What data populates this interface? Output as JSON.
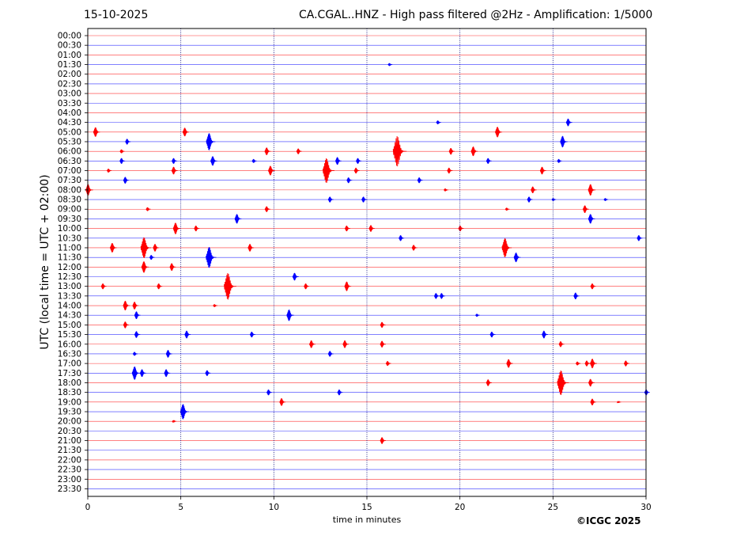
{
  "header": {
    "date": "15-10-2025",
    "title": "CA.CGAL..HNZ - High pass filtered @2Hz - Amplification: 1/5000"
  },
  "footer": {
    "copyright": "©ICGC 2025"
  },
  "colors": {
    "trace_a": "#ff0000",
    "trace_b": "#0000ff",
    "grid": "#00007a"
  },
  "chart_data": {
    "type": "line",
    "xlabel": "time in minutes",
    "ylabel": "UTC (local time = UTC + 02:00)",
    "xlim": [
      0,
      30
    ],
    "xticks": [
      0,
      5,
      10,
      15,
      20,
      25,
      30
    ],
    "vertical_grid_at": [
      5,
      10,
      15,
      20,
      25
    ],
    "row_labels": [
      "00:00",
      "00:30",
      "01:00",
      "01:30",
      "02:00",
      "02:30",
      "03:00",
      "03:30",
      "04:00",
      "04:30",
      "05:00",
      "05:30",
      "06:00",
      "06:30",
      "07:00",
      "07:30",
      "08:00",
      "08:30",
      "09:00",
      "09:30",
      "10:00",
      "10:30",
      "11:00",
      "11:30",
      "12:00",
      "12:30",
      "13:00",
      "13:30",
      "14:00",
      "14:30",
      "15:00",
      "15:30",
      "16:00",
      "16:30",
      "17:00",
      "17:30",
      "18:00",
      "18:30",
      "19:00",
      "19:30",
      "20:00",
      "20:30",
      "21:00",
      "21:30",
      "22:00",
      "22:30",
      "23:00",
      "23:30"
    ],
    "row_colors": [
      "trace_a",
      "trace_b"
    ],
    "events": [
      {
        "row": 3,
        "t": 16.2,
        "amp": 0.15
      },
      {
        "row": 9,
        "t": 18.8,
        "amp": 0.2
      },
      {
        "row": 9,
        "t": 25.8,
        "amp": 0.4
      },
      {
        "row": 10,
        "t": 0.4,
        "amp": 0.5
      },
      {
        "row": 10,
        "t": 5.2,
        "amp": 0.45
      },
      {
        "row": 10,
        "t": 22.0,
        "amp": 0.55
      },
      {
        "row": 11,
        "t": 2.1,
        "amp": 0.3
      },
      {
        "row": 11,
        "t": 6.5,
        "amp": 0.9
      },
      {
        "row": 11,
        "t": 25.5,
        "amp": 0.6
      },
      {
        "row": 12,
        "t": 1.8,
        "amp": 0.2
      },
      {
        "row": 12,
        "t": 9.6,
        "amp": 0.4
      },
      {
        "row": 12,
        "t": 11.3,
        "amp": 0.3
      },
      {
        "row": 12,
        "t": 16.6,
        "amp": 1.6
      },
      {
        "row": 12,
        "t": 19.5,
        "amp": 0.35
      },
      {
        "row": 12,
        "t": 20.7,
        "amp": 0.5
      },
      {
        "row": 13,
        "t": 1.8,
        "amp": 0.3
      },
      {
        "row": 13,
        "t": 4.6,
        "amp": 0.3
      },
      {
        "row": 13,
        "t": 6.7,
        "amp": 0.5
      },
      {
        "row": 13,
        "t": 8.9,
        "amp": 0.2
      },
      {
        "row": 13,
        "t": 13.4,
        "amp": 0.4
      },
      {
        "row": 13,
        "t": 14.5,
        "amp": 0.3
      },
      {
        "row": 13,
        "t": 21.5,
        "amp": 0.3
      },
      {
        "row": 13,
        "t": 25.3,
        "amp": 0.2
      },
      {
        "row": 14,
        "t": 1.1,
        "amp": 0.2
      },
      {
        "row": 14,
        "t": 4.6,
        "amp": 0.4
      },
      {
        "row": 14,
        "t": 9.8,
        "amp": 0.5
      },
      {
        "row": 14,
        "t": 12.8,
        "amp": 1.3
      },
      {
        "row": 14,
        "t": 14.4,
        "amp": 0.3
      },
      {
        "row": 14,
        "t": 19.4,
        "amp": 0.3
      },
      {
        "row": 14,
        "t": 24.4,
        "amp": 0.4
      },
      {
        "row": 15,
        "t": 2.0,
        "amp": 0.35
      },
      {
        "row": 15,
        "t": 14.0,
        "amp": 0.3
      },
      {
        "row": 15,
        "t": 17.8,
        "amp": 0.3
      },
      {
        "row": 16,
        "t": 0.0,
        "amp": 0.6
      },
      {
        "row": 16,
        "t": 19.2,
        "amp": 0.15
      },
      {
        "row": 16,
        "t": 23.9,
        "amp": 0.35
      },
      {
        "row": 16,
        "t": 27.0,
        "amp": 0.6
      },
      {
        "row": 17,
        "t": 13.0,
        "amp": 0.3
      },
      {
        "row": 17,
        "t": 14.8,
        "amp": 0.3
      },
      {
        "row": 17,
        "t": 23.7,
        "amp": 0.3
      },
      {
        "row": 17,
        "t": 25.0,
        "amp": 0.15
      },
      {
        "row": 17,
        "t": 27.8,
        "amp": 0.15
      },
      {
        "row": 18,
        "t": 3.2,
        "amp": 0.2
      },
      {
        "row": 18,
        "t": 9.6,
        "amp": 0.3
      },
      {
        "row": 18,
        "t": 22.5,
        "amp": 0.15
      },
      {
        "row": 18,
        "t": 26.7,
        "amp": 0.4
      },
      {
        "row": 19,
        "t": 8.0,
        "amp": 0.5
      },
      {
        "row": 19,
        "t": 27.0,
        "amp": 0.5
      },
      {
        "row": 20,
        "t": 4.7,
        "amp": 0.6
      },
      {
        "row": 20,
        "t": 5.8,
        "amp": 0.3
      },
      {
        "row": 20,
        "t": 13.9,
        "amp": 0.3
      },
      {
        "row": 20,
        "t": 15.2,
        "amp": 0.35
      },
      {
        "row": 20,
        "t": 20.0,
        "amp": 0.3
      },
      {
        "row": 21,
        "t": 16.8,
        "amp": 0.3
      },
      {
        "row": 21,
        "t": 29.6,
        "amp": 0.3
      },
      {
        "row": 22,
        "t": 1.3,
        "amp": 0.5
      },
      {
        "row": 22,
        "t": 3.0,
        "amp": 1.1
      },
      {
        "row": 22,
        "t": 3.6,
        "amp": 0.4
      },
      {
        "row": 22,
        "t": 8.7,
        "amp": 0.4
      },
      {
        "row": 22,
        "t": 17.5,
        "amp": 0.3
      },
      {
        "row": 22,
        "t": 22.4,
        "amp": 1.0
      },
      {
        "row": 23,
        "t": 3.4,
        "amp": 0.25
      },
      {
        "row": 23,
        "t": 6.5,
        "amp": 1.1
      },
      {
        "row": 23,
        "t": 23.0,
        "amp": 0.5
      },
      {
        "row": 24,
        "t": 3.0,
        "amp": 0.6
      },
      {
        "row": 24,
        "t": 4.5,
        "amp": 0.4
      },
      {
        "row": 25,
        "t": 11.1,
        "amp": 0.4
      },
      {
        "row": 26,
        "t": 0.8,
        "amp": 0.3
      },
      {
        "row": 26,
        "t": 3.8,
        "amp": 0.3
      },
      {
        "row": 26,
        "t": 7.5,
        "amp": 1.4
      },
      {
        "row": 26,
        "t": 11.7,
        "amp": 0.3
      },
      {
        "row": 26,
        "t": 13.9,
        "amp": 0.5
      },
      {
        "row": 26,
        "t": 27.1,
        "amp": 0.3
      },
      {
        "row": 27,
        "t": 18.7,
        "amp": 0.3
      },
      {
        "row": 27,
        "t": 19.0,
        "amp": 0.3
      },
      {
        "row": 27,
        "t": 26.2,
        "amp": 0.35
      },
      {
        "row": 28,
        "t": 2.0,
        "amp": 0.5
      },
      {
        "row": 28,
        "t": 2.5,
        "amp": 0.4
      },
      {
        "row": 28,
        "t": 6.8,
        "amp": 0.15
      },
      {
        "row": 29,
        "t": 2.6,
        "amp": 0.4
      },
      {
        "row": 29,
        "t": 10.8,
        "amp": 0.6
      },
      {
        "row": 29,
        "t": 20.9,
        "amp": 0.15
      },
      {
        "row": 30,
        "t": 2.0,
        "amp": 0.35
      },
      {
        "row": 30,
        "t": 15.8,
        "amp": 0.3
      },
      {
        "row": 31,
        "t": 2.6,
        "amp": 0.35
      },
      {
        "row": 31,
        "t": 5.3,
        "amp": 0.4
      },
      {
        "row": 31,
        "t": 8.8,
        "amp": 0.3
      },
      {
        "row": 31,
        "t": 21.7,
        "amp": 0.3
      },
      {
        "row": 31,
        "t": 24.5,
        "amp": 0.4
      },
      {
        "row": 32,
        "t": 12.0,
        "amp": 0.4
      },
      {
        "row": 32,
        "t": 13.8,
        "amp": 0.4
      },
      {
        "row": 32,
        "t": 15.8,
        "amp": 0.35
      },
      {
        "row": 32,
        "t": 25.4,
        "amp": 0.3
      },
      {
        "row": 33,
        "t": 2.5,
        "amp": 0.2
      },
      {
        "row": 33,
        "t": 4.3,
        "amp": 0.4
      },
      {
        "row": 33,
        "t": 13.0,
        "amp": 0.3
      },
      {
        "row": 34,
        "t": 16.1,
        "amp": 0.25
      },
      {
        "row": 34,
        "t": 22.6,
        "amp": 0.45
      },
      {
        "row": 34,
        "t": 26.3,
        "amp": 0.2
      },
      {
        "row": 34,
        "t": 26.8,
        "amp": 0.3
      },
      {
        "row": 34,
        "t": 27.1,
        "amp": 0.5
      },
      {
        "row": 34,
        "t": 28.9,
        "amp": 0.3
      },
      {
        "row": 35,
        "t": 2.5,
        "amp": 0.7
      },
      {
        "row": 35,
        "t": 2.9,
        "amp": 0.4
      },
      {
        "row": 35,
        "t": 4.2,
        "amp": 0.4
      },
      {
        "row": 35,
        "t": 6.4,
        "amp": 0.3
      },
      {
        "row": 36,
        "t": 21.5,
        "amp": 0.35
      },
      {
        "row": 36,
        "t": 25.4,
        "amp": 1.3
      },
      {
        "row": 36,
        "t": 27.0,
        "amp": 0.4
      },
      {
        "row": 37,
        "t": 9.7,
        "amp": 0.3
      },
      {
        "row": 37,
        "t": 13.5,
        "amp": 0.3
      },
      {
        "row": 37,
        "t": 30.0,
        "amp": 0.3
      },
      {
        "row": 38,
        "t": 10.4,
        "amp": 0.4
      },
      {
        "row": 38,
        "t": 27.1,
        "amp": 0.35
      },
      {
        "row": 38,
        "t": 28.5,
        "amp": 0.1
      },
      {
        "row": 39,
        "t": 5.1,
        "amp": 0.8
      },
      {
        "row": 40,
        "t": 4.6,
        "amp": 0.12
      },
      {
        "row": 42,
        "t": 15.8,
        "amp": 0.35
      }
    ]
  }
}
